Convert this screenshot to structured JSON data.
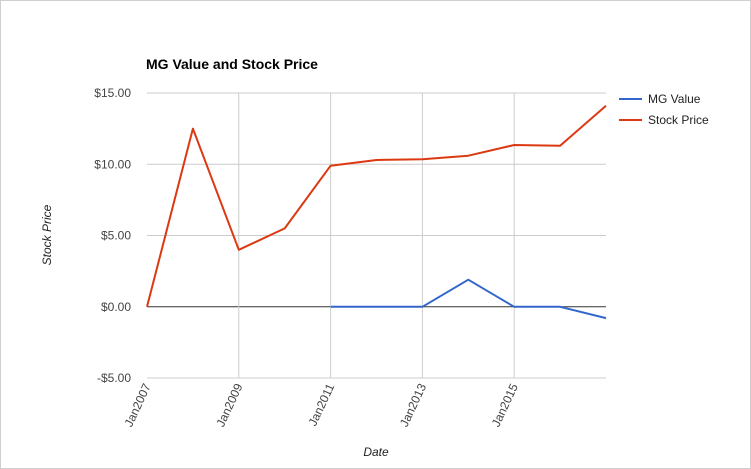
{
  "chart_data": {
    "type": "line",
    "title": "MG Value and Stock Price",
    "xlabel": "Date",
    "ylabel": "Stock Price",
    "x": [
      2007,
      2008,
      2009,
      2010,
      2011,
      2012,
      2013,
      2014,
      2015,
      2016,
      2017
    ],
    "x_ticks": [
      {
        "label": "Jan2007",
        "value": 2007
      },
      {
        "label": "Jan2009",
        "value": 2009
      },
      {
        "label": "Jan2011",
        "value": 2011
      },
      {
        "label": "Jan2013",
        "value": 2013
      },
      {
        "label": "Jan2015",
        "value": 2015
      }
    ],
    "y_ticks": [
      {
        "label": "$15.00",
        "value": 15
      },
      {
        "label": "$10.00",
        "value": 10
      },
      {
        "label": "$5.00",
        "value": 5
      },
      {
        "label": "$0.00",
        "value": 0
      },
      {
        "label": "-$5.00",
        "value": -5
      }
    ],
    "xlim": [
      2007,
      2017
    ],
    "ylim": [
      -5,
      15
    ],
    "grid": true,
    "legend_position": "right",
    "series": [
      {
        "name": "MG Value",
        "color": "#3366cc",
        "values": [
          null,
          null,
          null,
          null,
          0,
          0,
          0,
          1.9,
          0,
          0,
          -0.8
        ]
      },
      {
        "name": "Stock Price",
        "color": "#dc3912",
        "values": [
          0,
          12.5,
          4.0,
          5.5,
          9.9,
          10.3,
          10.35,
          10.6,
          11.35,
          11.3,
          14.1
        ]
      }
    ]
  }
}
